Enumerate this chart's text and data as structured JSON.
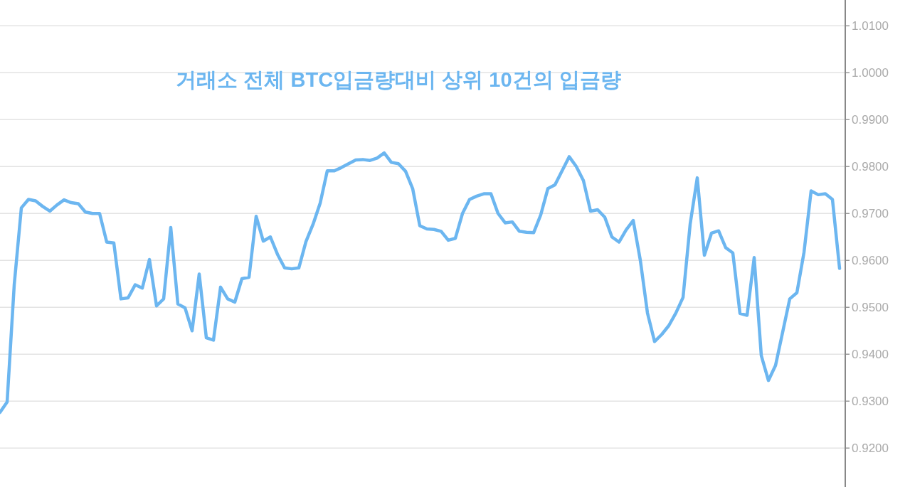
{
  "chart_data": {
    "type": "line",
    "title": "거래소 전체 BTC입금량대비 상위 10건의 입금량",
    "categories": [
      null,
      null,
      null,
      null,
      null,
      null,
      null,
      null,
      null,
      null,
      null,
      null,
      null,
      null,
      null,
      null,
      null,
      null,
      null,
      null,
      null,
      null,
      null,
      null,
      null,
      null,
      null,
      null,
      null,
      null,
      null,
      null,
      null,
      null,
      null,
      null,
      null,
      null,
      null,
      null,
      null,
      null,
      null,
      null,
      null,
      null,
      null,
      null,
      null,
      null,
      null,
      null,
      null,
      null,
      null,
      null,
      null,
      null,
      null,
      null,
      null,
      null,
      null,
      null,
      null,
      null,
      null,
      null,
      null,
      null,
      null,
      null,
      null,
      null,
      null,
      null,
      null,
      null,
      null,
      null,
      null,
      null,
      null,
      null,
      null,
      null,
      null,
      null,
      null,
      null,
      null,
      null,
      null,
      null,
      null,
      null,
      null,
      null,
      null,
      null,
      null,
      null,
      null,
      null,
      null,
      null,
      null,
      null,
      null,
      null,
      null,
      null,
      null,
      null,
      null,
      null,
      null,
      null,
      null
    ],
    "series": [
      {
        "color": "#6cb6f0",
        "values": [
          0.9276,
          0.9298,
          0.9548,
          0.9712,
          0.973,
          0.9727,
          0.9715,
          0.9705,
          0.9718,
          0.9729,
          0.9723,
          0.9721,
          0.9703,
          0.97,
          0.97,
          0.9639,
          0.9637,
          0.9518,
          0.952,
          0.9548,
          0.9541,
          0.9602,
          0.9503,
          0.9518,
          0.967,
          0.9507,
          0.9499,
          0.945,
          0.9571,
          0.9435,
          0.943,
          0.9543,
          0.9518,
          0.9511,
          0.9561,
          0.9564,
          0.9694,
          0.9641,
          0.965,
          0.9613,
          0.9584,
          0.9582,
          0.9584,
          0.964,
          0.9677,
          0.9722,
          0.9791,
          0.9791,
          0.9798,
          0.9806,
          0.9814,
          0.9815,
          0.9813,
          0.9818,
          0.9829,
          0.9809,
          0.9806,
          0.979,
          0.9753,
          0.9674,
          0.9667,
          0.9666,
          0.9662,
          0.9643,
          0.9647,
          0.97,
          0.973,
          0.9737,
          0.9742,
          0.9742,
          0.97,
          0.968,
          0.9682,
          0.9662,
          0.966,
          0.9659,
          0.9697,
          0.9753,
          0.9761,
          0.9791,
          0.9821,
          0.98,
          0.977,
          0.9705,
          0.9708,
          0.9692,
          0.965,
          0.9639,
          0.9665,
          0.9685,
          0.96,
          0.9488,
          0.9427,
          0.9442,
          0.9461,
          0.9488,
          0.9521,
          0.9677,
          0.9776,
          0.9611,
          0.9658,
          0.9663,
          0.9627,
          0.9616,
          0.9487,
          0.9483,
          0.9606,
          0.9397,
          0.9344,
          0.9376,
          0.9447,
          0.9518,
          0.9531,
          0.9617,
          0.9748,
          0.974,
          0.9742,
          0.973,
          0.9583
        ]
      }
    ],
    "ylim": [
      0.9117,
      1.0155
    ],
    "yticks": [
      {
        "value": 0.92,
        "label": "0.9200"
      },
      {
        "value": 0.93,
        "label": "0.9300"
      },
      {
        "value": 0.94,
        "label": "0.9400"
      },
      {
        "value": 0.95,
        "label": "0.9500"
      },
      {
        "value": 0.96,
        "label": "0.9600"
      },
      {
        "value": 0.97,
        "label": "0.9700"
      },
      {
        "value": 0.98,
        "label": "0.9800"
      },
      {
        "value": 0.99,
        "label": "0.9900"
      },
      {
        "value": 1.0,
        "label": "1.0000"
      },
      {
        "value": 1.01,
        "label": "1.0100"
      }
    ],
    "tick_labels": "y",
    "grid": "y",
    "marker": "none",
    "line_style": "solid"
  }
}
